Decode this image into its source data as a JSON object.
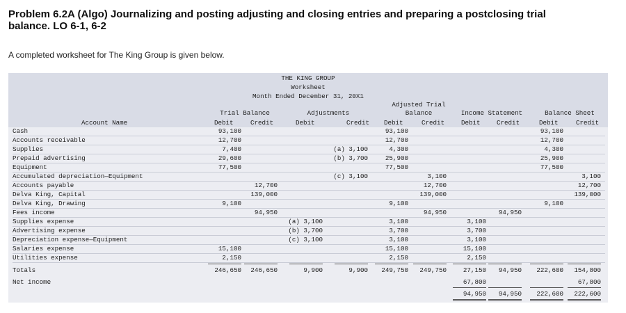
{
  "problem": {
    "title": "Problem 6.2A (Algo) Journalizing and posting adjusting and closing entries and preparing a postclosing trial balance. LO 6-1, 6-2",
    "intro": "A completed worksheet for The King Group is given below."
  },
  "worksheet": {
    "heading": [
      "THE KING GROUP",
      "Worksheet",
      "Month Ended December 31, 20X1"
    ],
    "col_groups": {
      "trial_balance": "Trial Balance",
      "adjustments": "Adjustments",
      "adjusted_trial_balance_1": "Adjusted Trial",
      "adjusted_trial_balance_2": "Balance",
      "income_statement": "Income Statement",
      "balance_sheet": "Balance Sheet"
    },
    "col_labels": {
      "account_name": "Account Name",
      "debit": "Debit",
      "credit": "Credit"
    },
    "rows": [
      {
        "name": "Cash",
        "tb_dr": "93,100",
        "tb_cr": "",
        "adj_dr": "",
        "adj_cr": "",
        "atb_dr": "93,100",
        "atb_cr": "",
        "is_dr": "",
        "is_cr": "",
        "bs_dr": "93,100",
        "bs_cr": ""
      },
      {
        "name": "Accounts receivable",
        "tb_dr": "12,700",
        "tb_cr": "",
        "adj_dr": "",
        "adj_cr": "",
        "atb_dr": "12,700",
        "atb_cr": "",
        "is_dr": "",
        "is_cr": "",
        "bs_dr": "12,700",
        "bs_cr": ""
      },
      {
        "name": "Supplies",
        "tb_dr": "7,400",
        "tb_cr": "",
        "adj_dr": "",
        "adj_cr": "(a) 3,100",
        "atb_dr": "4,300",
        "atb_cr": "",
        "is_dr": "",
        "is_cr": "",
        "bs_dr": "4,300",
        "bs_cr": ""
      },
      {
        "name": "Prepaid advertising",
        "tb_dr": "29,600",
        "tb_cr": "",
        "adj_dr": "",
        "adj_cr": "(b) 3,700",
        "atb_dr": "25,900",
        "atb_cr": "",
        "is_dr": "",
        "is_cr": "",
        "bs_dr": "25,900",
        "bs_cr": ""
      },
      {
        "name": "Equipment",
        "tb_dr": "77,500",
        "tb_cr": "",
        "adj_dr": "",
        "adj_cr": "",
        "atb_dr": "77,500",
        "atb_cr": "",
        "is_dr": "",
        "is_cr": "",
        "bs_dr": "77,500",
        "bs_cr": ""
      },
      {
        "name": "Accumulated depreciation—Equipment",
        "tb_dr": "",
        "tb_cr": "",
        "adj_dr": "",
        "adj_cr": "(c) 3,100",
        "atb_dr": "",
        "atb_cr": "3,100",
        "is_dr": "",
        "is_cr": "",
        "bs_dr": "",
        "bs_cr": "3,100"
      },
      {
        "name": "Accounts payable",
        "tb_dr": "",
        "tb_cr": "12,700",
        "adj_dr": "",
        "adj_cr": "",
        "atb_dr": "",
        "atb_cr": "12,700",
        "is_dr": "",
        "is_cr": "",
        "bs_dr": "",
        "bs_cr": "12,700"
      },
      {
        "name": "Delva King, Capital",
        "tb_dr": "",
        "tb_cr": "139,000",
        "adj_dr": "",
        "adj_cr": "",
        "atb_dr": "",
        "atb_cr": "139,000",
        "is_dr": "",
        "is_cr": "",
        "bs_dr": "",
        "bs_cr": "139,000"
      },
      {
        "name": "Delva King, Drawing",
        "tb_dr": "9,100",
        "tb_cr": "",
        "adj_dr": "",
        "adj_cr": "",
        "atb_dr": "9,100",
        "atb_cr": "",
        "is_dr": "",
        "is_cr": "",
        "bs_dr": "9,100",
        "bs_cr": ""
      },
      {
        "name": "Fees income",
        "tb_dr": "",
        "tb_cr": "94,950",
        "adj_dr": "",
        "adj_cr": "",
        "atb_dr": "",
        "atb_cr": "94,950",
        "is_dr": "",
        "is_cr": "94,950",
        "bs_dr": "",
        "bs_cr": ""
      },
      {
        "name": "Supplies expense",
        "tb_dr": "",
        "tb_cr": "",
        "adj_dr": "(a) 3,100",
        "adj_cr": "",
        "atb_dr": "3,100",
        "atb_cr": "",
        "is_dr": "3,100",
        "is_cr": "",
        "bs_dr": "",
        "bs_cr": ""
      },
      {
        "name": "Advertising expense",
        "tb_dr": "",
        "tb_cr": "",
        "adj_dr": "(b) 3,700",
        "adj_cr": "",
        "atb_dr": "3,700",
        "atb_cr": "",
        "is_dr": "3,700",
        "is_cr": "",
        "bs_dr": "",
        "bs_cr": ""
      },
      {
        "name": "Depreciation expense—Equipment",
        "tb_dr": "",
        "tb_cr": "",
        "adj_dr": "(c) 3,100",
        "adj_cr": "",
        "atb_dr": "3,100",
        "atb_cr": "",
        "is_dr": "3,100",
        "is_cr": "",
        "bs_dr": "",
        "bs_cr": ""
      },
      {
        "name": "Salaries expense",
        "tb_dr": "15,100",
        "tb_cr": "",
        "adj_dr": "",
        "adj_cr": "",
        "atb_dr": "15,100",
        "atb_cr": "",
        "is_dr": "15,100",
        "is_cr": "",
        "bs_dr": "",
        "bs_cr": ""
      },
      {
        "name": "Utilities expense",
        "tb_dr": "2,150",
        "tb_cr": "",
        "adj_dr": "",
        "adj_cr": "",
        "atb_dr": "2,150",
        "atb_cr": "",
        "is_dr": "2,150",
        "is_cr": "",
        "bs_dr": "",
        "bs_cr": ""
      }
    ],
    "totals": {
      "name": "Totals",
      "tb_dr": "246,650",
      "tb_cr": "246,650",
      "adj_dr": "9,900",
      "adj_cr": "9,900",
      "atb_dr": "249,750",
      "atb_cr": "249,750",
      "is_dr": "27,150",
      "is_cr": "94,950",
      "bs_dr": "222,600",
      "bs_cr": "154,800"
    },
    "net_income": {
      "name": "Net income",
      "is_dr": "67,800",
      "bs_cr": "67,800"
    },
    "final": {
      "is_dr": "94,950",
      "is_cr": "94,950",
      "bs_dr": "222,600",
      "bs_cr": "222,600"
    }
  }
}
